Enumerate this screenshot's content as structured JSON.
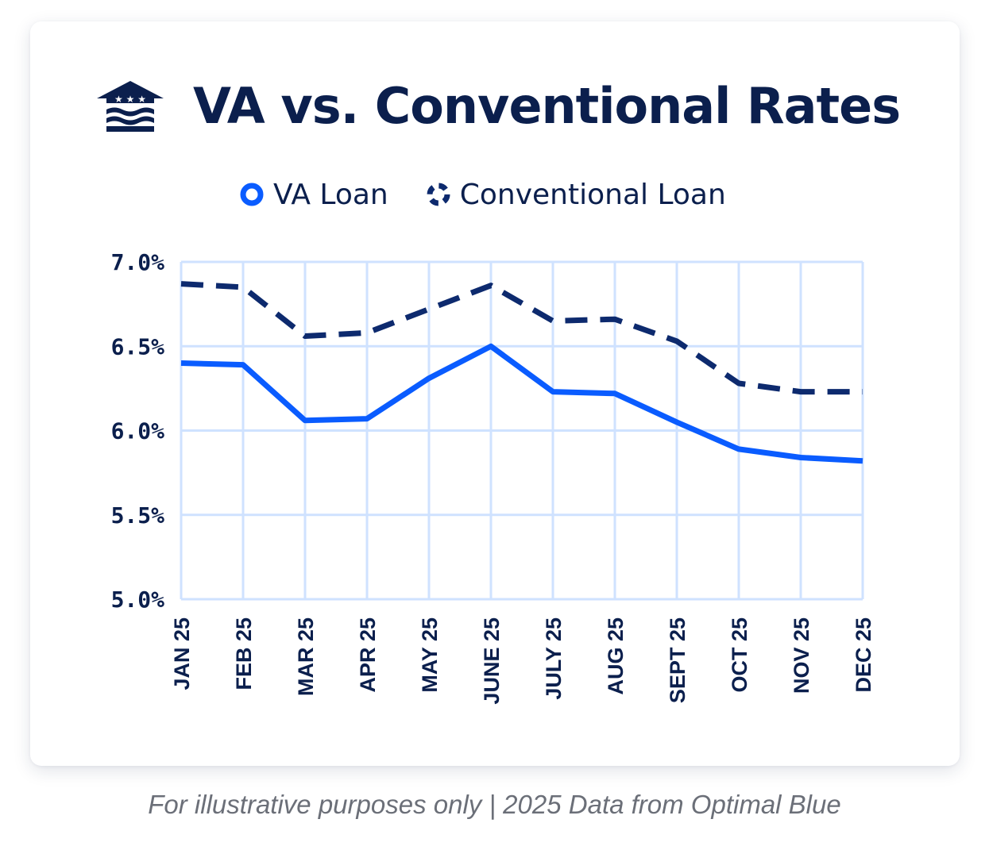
{
  "header": {
    "title": "VA vs. Conventional Rates",
    "logo_icon": "house-flag-logo-icon"
  },
  "colors": {
    "navy": "#0b1f4d",
    "va_line": "#0a5cff",
    "conventional_line": "#0d2a6e",
    "grid": "#cfe2ff"
  },
  "legend": [
    {
      "label": "VA Loan",
      "icon": "solid-ring-icon"
    },
    {
      "label": "Conventional Loan",
      "icon": "dashed-ring-icon"
    }
  ],
  "chart_data": {
    "type": "line",
    "categories": [
      "JAN 25",
      "FEB 25",
      "MAR 25",
      "APR 25",
      "MAY 25",
      "JUNE 25",
      "JULY 25",
      "AUG 25",
      "SEPT 25",
      "OCT 25",
      "NOV 25",
      "DEC 25"
    ],
    "series": [
      {
        "name": "VA Loan",
        "values": [
          6.4,
          6.39,
          6.06,
          6.07,
          6.31,
          6.5,
          6.23,
          6.22,
          6.05,
          5.89,
          5.84,
          5.82
        ],
        "style": "solid"
      },
      {
        "name": "Conventional Loan",
        "values": [
          6.87,
          6.85,
          6.56,
          6.58,
          6.72,
          6.86,
          6.65,
          6.66,
          6.53,
          6.28,
          6.23,
          6.23
        ],
        "style": "dashed"
      }
    ],
    "yticks": [
      "7.0%",
      "6.5%",
      "6.0%",
      "5.5%",
      "5.0%"
    ],
    "ylim": [
      5.0,
      7.0
    ],
    "grid": true,
    "legend_position": "top-center"
  },
  "footnote": "For illustrative purposes only | 2025 Data from Optimal Blue"
}
